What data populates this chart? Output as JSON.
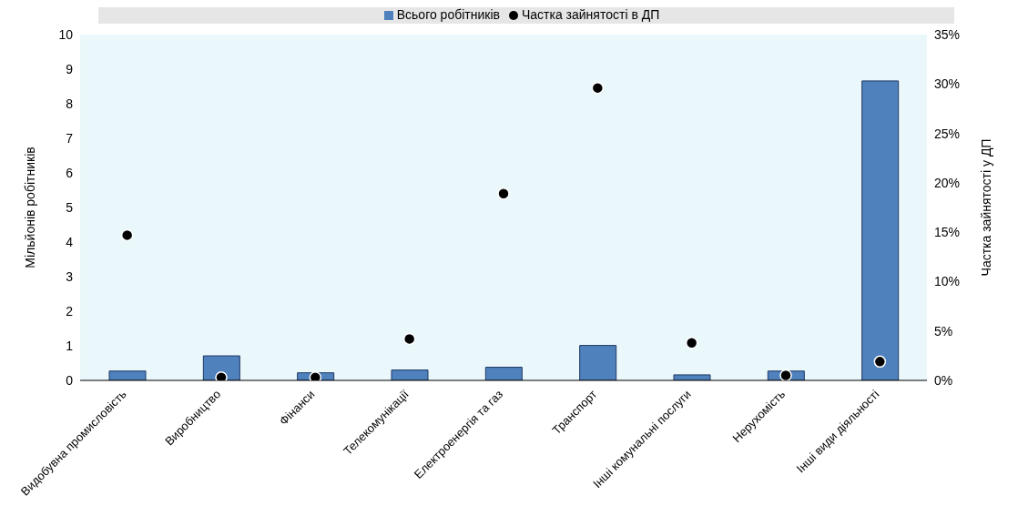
{
  "chart_data": {
    "type": "bar",
    "categories": [
      "Видобувна промисловість",
      "Виробництво",
      "Фінанси",
      "Телекомунікації",
      "Електроенергія та газ",
      "Транспорт",
      "Інші комунальні послуги",
      "Нерухомість",
      "Інші види діяльності"
    ],
    "series": [
      {
        "name": "Всього робітників",
        "color": "#4f81bd",
        "values": [
          0.27,
          0.71,
          0.22,
          0.3,
          0.38,
          1.01,
          0.16,
          0.27,
          8.66
        ]
      },
      {
        "name": "Частка зайнятості в ДП",
        "type": "scatter",
        "axis": "y2",
        "color": "#000000",
        "values": [
          14.7,
          0.3,
          0.3,
          4.2,
          18.9,
          29.6,
          3.8,
          0.5,
          1.9
        ]
      }
    ],
    "ylabel": "Мільйонів робітників",
    "y2label": "Частка зайнятості у ДП",
    "ylim": [
      0,
      10
    ],
    "yticks": [
      0,
      1,
      2,
      3,
      4,
      5,
      6,
      7,
      8,
      9,
      10
    ],
    "y2lim": [
      0,
      35
    ],
    "y2ticks": [
      {
        "value": 0,
        "label": "0%"
      },
      {
        "value": 5,
        "label": "5%"
      },
      {
        "value": 10,
        "label": "10%"
      },
      {
        "value": 15,
        "label": "15%"
      },
      {
        "value": 20,
        "label": "20%"
      },
      {
        "value": 25,
        "label": "25%"
      },
      {
        "value": 30,
        "label": "30%"
      },
      {
        "value": 35,
        "label": "35%"
      }
    ],
    "legend": "top",
    "grid": false,
    "marker": "circle"
  }
}
